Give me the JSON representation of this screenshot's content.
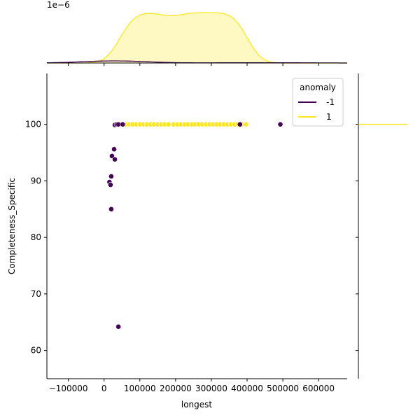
{
  "chart_data": {
    "type": "scatter",
    "xlabel": "longest",
    "ylabel": "Completeness_Specific",
    "xlim": [
      -160000,
      680000
    ],
    "ylim": [
      55,
      109
    ],
    "x_ticks": [
      -100000,
      0,
      100000,
      200000,
      300000,
      400000,
      500000,
      600000
    ],
    "x_tick_labels": [
      "−100000",
      "0",
      "100000",
      "200000",
      "300000",
      "400000",
      "500000",
      "600000"
    ],
    "y_ticks": [
      60,
      70,
      80,
      90,
      100
    ],
    "y_tick_labels": [
      "60",
      "70",
      "80",
      "90",
      "100"
    ],
    "top_marginal": {
      "offset_label": "1e−6",
      "peak_density": 1.0
    },
    "legend": {
      "title": "anomaly",
      "placement": "upper right",
      "entries": [
        {
          "label": "-1",
          "color": "#440154"
        },
        {
          "label": "1",
          "color": "#fde725"
        }
      ]
    },
    "series": [
      {
        "name": "-1",
        "color": "#440154",
        "points": [
          [
            30000,
            99.9
          ],
          [
            35000,
            100
          ],
          [
            40000,
            100
          ],
          [
            52000,
            100
          ],
          [
            28000,
            95.6
          ],
          [
            22000,
            94.4
          ],
          [
            30000,
            93.8
          ],
          [
            20000,
            90.8
          ],
          [
            15000,
            89.8
          ],
          [
            18000,
            89.3
          ],
          [
            20000,
            85.0
          ],
          [
            40000,
            64.2
          ],
          [
            380000,
            100
          ],
          [
            493000,
            100
          ]
        ]
      },
      {
        "name": "1",
        "color": "#fde725",
        "points": [
          [
            45000,
            100
          ],
          [
            60000,
            100
          ],
          [
            70000,
            100
          ],
          [
            80000,
            100
          ],
          [
            90000,
            100
          ],
          [
            100000,
            100
          ],
          [
            110000,
            100
          ],
          [
            120000,
            100
          ],
          [
            130000,
            100
          ],
          [
            140000,
            100
          ],
          [
            150000,
            100
          ],
          [
            160000,
            100
          ],
          [
            170000,
            100
          ],
          [
            180000,
            100
          ],
          [
            195000,
            100
          ],
          [
            205000,
            100
          ],
          [
            215000,
            100
          ],
          [
            225000,
            100
          ],
          [
            235000,
            100
          ],
          [
            245000,
            100
          ],
          [
            255000,
            100
          ],
          [
            265000,
            100
          ],
          [
            275000,
            100
          ],
          [
            285000,
            100
          ],
          [
            295000,
            100
          ],
          [
            305000,
            100
          ],
          [
            315000,
            100
          ],
          [
            325000,
            100
          ],
          [
            335000,
            100
          ],
          [
            345000,
            100
          ],
          [
            355000,
            100
          ],
          [
            365000,
            100
          ],
          [
            375000,
            100
          ],
          [
            385000,
            100
          ],
          [
            397000,
            100
          ]
        ]
      }
    ]
  }
}
